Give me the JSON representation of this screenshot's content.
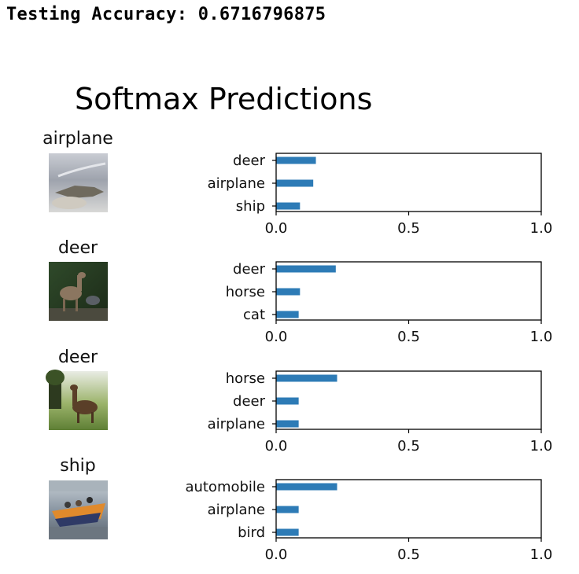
{
  "header": {
    "accuracy_text": "Testing Accuracy: 0.6716796875"
  },
  "figure": {
    "title": "Softmax Predictions",
    "bar_color": "#2d7bb6"
  },
  "samples": [
    {
      "true_label": "airplane",
      "image_hint": "grey sky, aircraft on ground"
    },
    {
      "true_label": "deer",
      "image_hint": "deer in dark green forest"
    },
    {
      "true_label": "deer",
      "image_hint": "deer standing on grass near trees"
    },
    {
      "true_label": "ship",
      "image_hint": "orange boat with people"
    }
  ],
  "chart_data": [
    {
      "type": "bar",
      "orientation": "horizontal",
      "categories": [
        "deer",
        "airplane",
        "ship"
      ],
      "values": [
        0.15,
        0.14,
        0.09
      ],
      "xlim": [
        0.0,
        1.0
      ],
      "xticks": [
        "0.0",
        "0.5",
        "1.0"
      ]
    },
    {
      "type": "bar",
      "orientation": "horizontal",
      "categories": [
        "deer",
        "horse",
        "cat"
      ],
      "values": [
        0.225,
        0.09,
        0.085
      ],
      "xlim": [
        0.0,
        1.0
      ],
      "xticks": [
        "0.0",
        "0.5",
        "1.0"
      ]
    },
    {
      "type": "bar",
      "orientation": "horizontal",
      "categories": [
        "horse",
        "deer",
        "airplane"
      ],
      "values": [
        0.23,
        0.085,
        0.085
      ],
      "xlim": [
        0.0,
        1.0
      ],
      "xticks": [
        "0.0",
        "0.5",
        "1.0"
      ]
    },
    {
      "type": "bar",
      "orientation": "horizontal",
      "categories": [
        "automobile",
        "airplane",
        "bird"
      ],
      "values": [
        0.23,
        0.085,
        0.085
      ],
      "xlim": [
        0.0,
        1.0
      ],
      "xticks": [
        "0.0",
        "0.5",
        "1.0"
      ]
    }
  ]
}
